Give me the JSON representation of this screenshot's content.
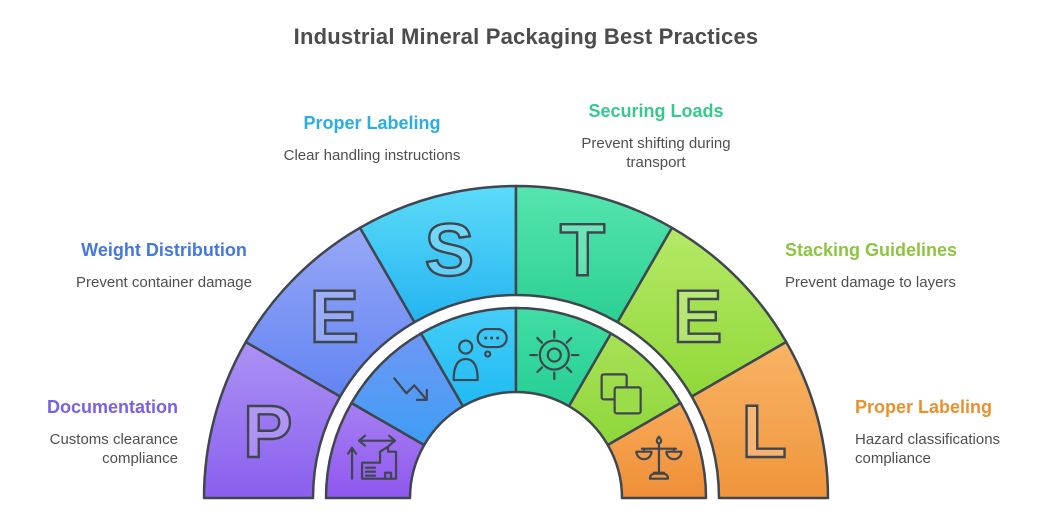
{
  "title": "Industrial Mineral Packaging Best Practices",
  "colors": {
    "background": "#ffffff",
    "stroke": "#3f4650",
    "title_text": "#4c4c4c",
    "subtitle_text": "#4f4f4f",
    "letter_fill": "rgba(255,255,255,0.22)"
  },
  "callouts": [
    {
      "id": "documentation",
      "title": "Documentation",
      "subtitle": "Customs clearance compliance",
      "color": "#7a5fe8"
    },
    {
      "id": "weight-distribution",
      "title": "Weight Distribution",
      "subtitle": "Prevent container damage",
      "color": "#4577e0"
    },
    {
      "id": "proper-labeling-handling",
      "title": "Proper Labeling",
      "subtitle": "Clear handling instructions",
      "color": "#29aee4"
    },
    {
      "id": "securing-loads",
      "title": "Securing Loads",
      "subtitle": "Prevent shifting during transport",
      "color": "#36c98c"
    },
    {
      "id": "stacking-guidelines",
      "title": "Stacking Guidelines",
      "subtitle": "Prevent damage to layers",
      "color": "#8cc63f"
    },
    {
      "id": "proper-labeling-hazard",
      "title": "Proper Labeling",
      "subtitle": "Hazard classifications compliance",
      "color": "#e8912d"
    }
  ],
  "arch": {
    "acronym": "PESTEL",
    "segments": [
      {
        "letter": "P",
        "callout": "documentation",
        "icon": "factory-expansion-icon",
        "outer_gradient": [
          "#ab92f4",
          "#8a5fee"
        ],
        "inner_gradient": [
          "#a57ff2",
          "#9058ef"
        ]
      },
      {
        "letter": "E",
        "callout": "weight-distribution",
        "icon": "trend-down-arrow-icon",
        "outer_gradient": [
          "#97a8f7",
          "#6284f2"
        ],
        "inner_gradient": [
          "#6f97f5",
          "#3e9ef5"
        ]
      },
      {
        "letter": "S",
        "callout": "proper-labeling-handling",
        "icon": "person-thinking-icon",
        "outer_gradient": [
          "#5cdbf8",
          "#24b4f1"
        ],
        "inner_gradient": [
          "#45cdf8",
          "#20baf3"
        ]
      },
      {
        "letter": "T",
        "callout": "securing-loads",
        "icon": "sun-icon",
        "outer_gradient": [
          "#55e5ae",
          "#2bd092"
        ],
        "inner_gradient": [
          "#41dda4",
          "#27cf94"
        ]
      },
      {
        "letter": "E",
        "callout": "stacking-guidelines",
        "icon": "layered-squares-icon",
        "outer_gradient": [
          "#b5e967",
          "#90d838"
        ],
        "inner_gradient": [
          "#a8e156",
          "#8ed73b"
        ]
      },
      {
        "letter": "L",
        "callout": "proper-labeling-hazard",
        "icon": "balance-scale-icon",
        "outer_gradient": [
          "#f8b465",
          "#f0953c"
        ],
        "inner_gradient": [
          "#f8a958",
          "#ef8f38"
        ]
      }
    ]
  }
}
